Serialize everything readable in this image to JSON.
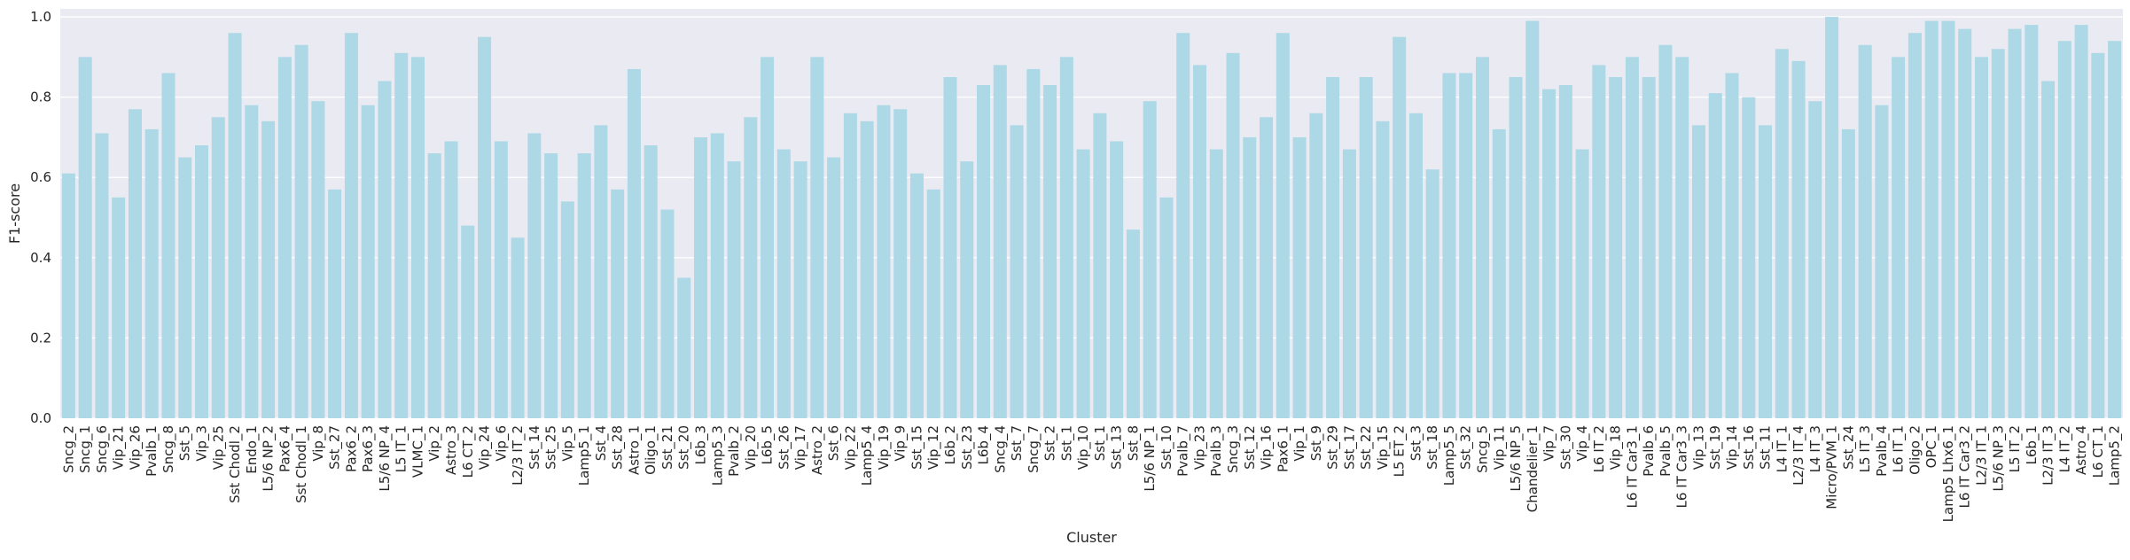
{
  "chart_data": {
    "type": "bar",
    "xlabel": "Cluster",
    "ylabel": "F1-score",
    "ylim": [
      0.0,
      1.02
    ],
    "yticks": [
      "0.0",
      "0.2",
      "0.4",
      "0.6",
      "0.8",
      "1.0"
    ],
    "grid": true,
    "legend": "none",
    "colors": {
      "bar": "#add8e6",
      "plot_bg": "#eaeaf2",
      "grid": "#ffffff"
    },
    "categories": [
      "Sncg_2",
      "Sncg_1",
      "Sncg_6",
      "Vip_21",
      "Vip_26",
      "Pvalb_1",
      "Sncg_8",
      "Sst_5",
      "Vip_3",
      "Vip_25",
      "Sst Chodl_2",
      "Endo_1",
      "L5/6 NP_2",
      "Pax6_4",
      "Sst Chodl_1",
      "Vip_8",
      "Sst_27",
      "Pax6_2",
      "Pax6_3",
      "L5/6 NP_4",
      "L5 IT_1",
      "VLMC_1",
      "Vip_2",
      "Astro_3",
      "L6 CT_2",
      "Vip_24",
      "Vip_6",
      "L2/3 IT_2",
      "Sst_14",
      "Sst_25",
      "Vip_5",
      "Lamp5_1",
      "Sst_4",
      "Sst_28",
      "Astro_1",
      "Oligo_1",
      "Sst_21",
      "Sst_20",
      "L6b_3",
      "Lamp5_3",
      "Pvalb_2",
      "Vip_20",
      "L6b_5",
      "Sst_26",
      "Vip_17",
      "Astro_2",
      "Sst_6",
      "Vip_22",
      "Lamp5_4",
      "Vip_19",
      "Vip_9",
      "Sst_15",
      "Vip_12",
      "L6b_2",
      "Sst_23",
      "L6b_4",
      "Sncg_4",
      "Sst_7",
      "Sncg_7",
      "Sst_2",
      "Sst_1",
      "Vip_10",
      "Sst_1",
      "Sst_13",
      "Sst_8",
      "L5/6 NP_1",
      "Sst_10",
      "Pvalb_7",
      "Vip_23",
      "Pvalb_3",
      "Sncg_3",
      "Sst_12",
      "Vip_16",
      "Pax6_1",
      "Vip_1",
      "Sst_9",
      "Sst_29",
      "Sst_17",
      "Sst_22",
      "Vip_15",
      "L5 ET_2",
      "Sst_3",
      "Sst_18",
      "Lamp5_5",
      "Sst_32",
      "Sncg_5",
      "Vip_11",
      "L5/6 NP_5",
      "Chandelier_1",
      "Vip_7",
      "Sst_30",
      "Vip_4",
      "L6 IT_2",
      "Vip_18",
      "L6 IT Car3_1",
      "Pvalb_6",
      "Pvalb_5",
      "L6 IT Car3_3",
      "Vip_13",
      "Sst_19",
      "Vip_14",
      "Sst_16",
      "Sst_11",
      "L4 IT_1",
      "L2/3 IT_4",
      "L4 IT_3",
      "Micro/PVM_1",
      "Sst_24",
      "L5 IT_3",
      "Pvalb_4",
      "L6 IT_1",
      "Oligo_2",
      "OPC_1",
      "Lamp5 Lhx6_1",
      "L6 IT Car3_2",
      "L2/3 IT_1",
      "L5/6 NP_3",
      "L5 IT_2",
      "L6b_1",
      "L2/3 IT_3",
      "L4 IT_2",
      "Astro_4",
      "L6 CT_1",
      "Lamp5_2"
    ],
    "values": [
      0.61,
      0.9,
      0.71,
      0.55,
      0.77,
      0.72,
      0.86,
      0.65,
      0.68,
      0.75,
      0.96,
      0.78,
      0.74,
      0.9,
      0.93,
      0.79,
      0.57,
      0.96,
      0.78,
      0.84,
      0.91,
      0.9,
      0.66,
      0.69,
      0.48,
      0.95,
      0.69,
      0.45,
      0.71,
      0.66,
      0.54,
      0.66,
      0.73,
      0.57,
      0.87,
      0.68,
      0.52,
      0.35,
      0.7,
      0.71,
      0.64,
      0.75,
      0.9,
      0.67,
      0.64,
      0.9,
      0.65,
      0.76,
      0.74,
      0.78,
      0.77,
      0.61,
      0.57,
      0.85,
      0.64,
      0.83,
      0.88,
      0.73,
      0.87,
      0.83,
      0.9,
      0.67,
      0.76,
      0.69,
      0.47,
      0.79,
      0.55,
      0.96,
      0.88,
      0.67,
      0.91,
      0.7,
      0.75,
      0.96,
      0.7,
      0.76,
      0.85,
      0.67,
      0.85,
      0.74,
      0.95,
      0.76,
      0.62,
      0.86,
      0.86,
      0.9,
      0.72,
      0.85,
      0.99,
      0.82,
      0.83,
      0.67,
      0.88,
      0.85,
      0.9,
      0.85,
      0.93,
      0.9,
      0.73,
      0.81,
      0.86,
      0.8,
      0.73,
      0.92,
      0.89,
      0.79,
      1.0,
      0.72,
      0.93,
      0.78,
      0.9,
      0.96,
      0.99,
      0.99,
      0.97,
      0.9,
      0.92,
      0.97,
      0.98,
      0.84,
      0.94,
      0.98,
      0.91,
      0.94
    ]
  }
}
